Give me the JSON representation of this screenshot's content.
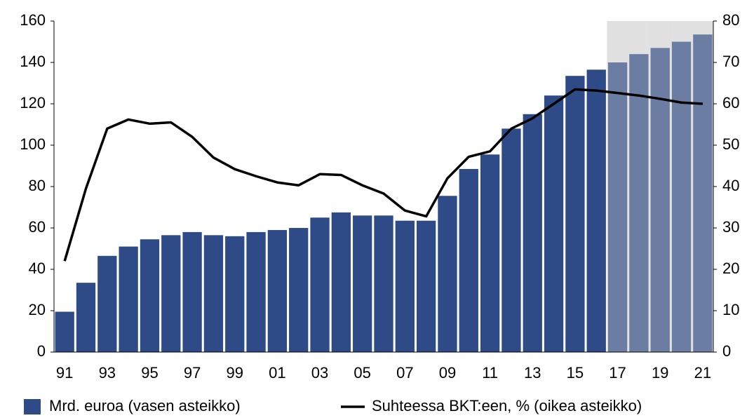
{
  "chart_data": {
    "type": "bar_line",
    "categories": [
      "91",
      null,
      "93",
      null,
      "95",
      null,
      "97",
      null,
      "99",
      null,
      "01",
      null,
      "03",
      null,
      "05",
      null,
      "07",
      null,
      "09",
      null,
      "11",
      null,
      "13",
      null,
      "15",
      null,
      "17",
      null,
      "19",
      null,
      "21"
    ],
    "series": [
      {
        "name": "Mrd. euroa (vasen asteikko)",
        "type": "bar",
        "color": "#2e4b87",
        "forecast_color": "#6b7da3",
        "forecast": [
          false,
          false,
          false,
          false,
          false,
          false,
          false,
          false,
          false,
          false,
          false,
          false,
          false,
          false,
          false,
          false,
          false,
          false,
          false,
          false,
          false,
          false,
          false,
          false,
          false,
          false,
          true,
          true,
          true,
          true,
          true
        ],
        "values": [
          19.5,
          33.5,
          46.5,
          51,
          54.5,
          56.5,
          58,
          56.5,
          56,
          58,
          59,
          60,
          65,
          67.5,
          66,
          66,
          63.5,
          63.5,
          75.5,
          88.5,
          95.5,
          108,
          115,
          124,
          133.5,
          136.5,
          140,
          144,
          147,
          150,
          153.5
        ]
      },
      {
        "name": "Suhteessa BKT:een, % (oikea asteikko)",
        "type": "line",
        "axis": "y2",
        "color": "#000000",
        "values": [
          22,
          39.5,
          54,
          56.2,
          55.2,
          55.5,
          52,
          47,
          44.2,
          42.5,
          41,
          40.3,
          43,
          42.8,
          40.3,
          38.3,
          34.2,
          32.8,
          42,
          47.2,
          48.5,
          54,
          56.5,
          60,
          63.5,
          63.2,
          62.6,
          62,
          61.2,
          60.3,
          60
        ]
      }
    ],
    "shade_color": "#e1e1e1",
    "ylim": [
      0,
      160
    ],
    "yticks": [
      0,
      20,
      40,
      60,
      80,
      100,
      120,
      140,
      160
    ],
    "y2lim": [
      0,
      80
    ],
    "y2ticks": [
      0,
      10,
      20,
      30,
      40,
      50,
      60,
      70,
      80
    ]
  }
}
